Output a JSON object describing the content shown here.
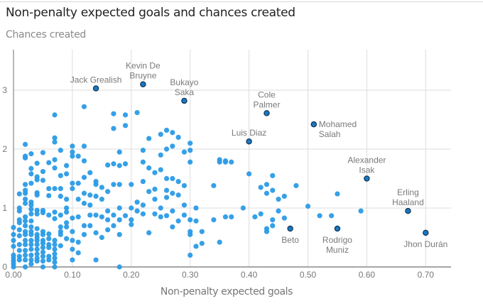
{
  "chart_data": {
    "type": "scatter",
    "title": "Non-penalty expected goals and chances created",
    "xlabel": "Non-penalty expected goals",
    "ylabel": "Chances created",
    "xlim": [
      0,
      0.75
    ],
    "ylim": [
      0,
      3.6
    ],
    "grid": true,
    "x_ticks": [
      "0.00",
      "0.10",
      "0.20",
      "0.30",
      "0.40",
      "0.50",
      "0.60",
      "0.70"
    ],
    "x_tick_values": [
      0,
      0.1,
      0.2,
      0.3,
      0.4,
      0.5,
      0.6,
      0.7
    ],
    "y_ticks": [
      "0",
      "1",
      "2",
      "3"
    ],
    "y_tick_values": [
      0,
      1,
      2,
      3
    ],
    "colors": {
      "point": "#2b9be6",
      "highlight": "#1a78c2",
      "highlight_stroke": "#123a5c",
      "grid": "#dddddd",
      "axis": "#888888"
    },
    "highlighted": [
      {
        "name": "Jack Grealish",
        "lines": [
          "Jack Grealish"
        ],
        "x": 0.14,
        "y": 3.03,
        "anchor": "top"
      },
      {
        "name": "Kevin De Bruyne",
        "lines": [
          "Kevin De",
          "Bruyne"
        ],
        "x": 0.22,
        "y": 3.1,
        "anchor": "top"
      },
      {
        "name": "Bukayo Saka",
        "lines": [
          "Bukayo",
          "Saka"
        ],
        "x": 0.29,
        "y": 2.82,
        "anchor": "top"
      },
      {
        "name": "Cole Palmer",
        "lines": [
          "Cole",
          "Palmer"
        ],
        "x": 0.43,
        "y": 2.61,
        "anchor": "top"
      },
      {
        "name": "Luis Diaz",
        "lines": [
          "Luis Diaz"
        ],
        "x": 0.4,
        "y": 2.13,
        "anchor": "top"
      },
      {
        "name": "Mohamed Salah",
        "lines": [
          "Mohamed",
          "Salah"
        ],
        "x": 0.51,
        "y": 2.42,
        "anchor": "right"
      },
      {
        "name": "Alexander Isak",
        "lines": [
          "Alexander",
          "Isak"
        ],
        "x": 0.6,
        "y": 1.5,
        "anchor": "top"
      },
      {
        "name": "Erling Haaland",
        "lines": [
          "Erling",
          "Haaland"
        ],
        "x": 0.67,
        "y": 0.95,
        "anchor": "top"
      },
      {
        "name": "Jhon Durán",
        "lines": [
          "Jhon Durán"
        ],
        "x": 0.7,
        "y": 0.58,
        "anchor": "bottom"
      },
      {
        "name": "Beto",
        "lines": [
          "Beto"
        ],
        "x": 0.47,
        "y": 0.65,
        "anchor": "bottom"
      },
      {
        "name": "Rodrigo Muniz",
        "lines": [
          "Rodrigo",
          "Muniz"
        ],
        "x": 0.55,
        "y": 0.65,
        "anchor": "bottom"
      }
    ],
    "points": [
      [
        0.0,
        0.67
      ],
      [
        0.0,
        0.55
      ],
      [
        0.0,
        0.45
      ],
      [
        0.0,
        0.35
      ],
      [
        0.0,
        0.2
      ],
      [
        0.0,
        0.15
      ],
      [
        0.0,
        0.1
      ],
      [
        0.0,
        0.05
      ],
      [
        0.0,
        0.0
      ],
      [
        0.01,
        1.24
      ],
      [
        0.01,
        1.0
      ],
      [
        0.01,
        0.95
      ],
      [
        0.01,
        0.8
      ],
      [
        0.01,
        0.75
      ],
      [
        0.01,
        0.63
      ],
      [
        0.01,
        0.53
      ],
      [
        0.01,
        0.38
      ],
      [
        0.01,
        0.28
      ],
      [
        0.01,
        0.18
      ],
      [
        0.01,
        0.12
      ],
      [
        0.02,
        2.08
      ],
      [
        0.02,
        1.88
      ],
      [
        0.02,
        1.85
      ],
      [
        0.02,
        1.4
      ],
      [
        0.02,
        1.3
      ],
      [
        0.02,
        1.25
      ],
      [
        0.02,
        1.15
      ],
      [
        0.02,
        1.08
      ],
      [
        0.02,
        0.85
      ],
      [
        0.02,
        0.78
      ],
      [
        0.02,
        0.7
      ],
      [
        0.02,
        0.6
      ],
      [
        0.02,
        0.55
      ],
      [
        0.02,
        0.45
      ],
      [
        0.02,
        0.38
      ],
      [
        0.02,
        0.28
      ],
      [
        0.02,
        0.2
      ],
      [
        0.02,
        0.12
      ],
      [
        0.02,
        0.0
      ],
      [
        0.03,
        1.92
      ],
      [
        0.03,
        1.67
      ],
      [
        0.03,
        1.58
      ],
      [
        0.03,
        1.42
      ],
      [
        0.03,
        1.1
      ],
      [
        0.03,
        1.05
      ],
      [
        0.03,
        0.98
      ],
      [
        0.03,
        0.9
      ],
      [
        0.03,
        0.78
      ],
      [
        0.03,
        0.68
      ],
      [
        0.03,
        0.6
      ],
      [
        0.03,
        0.55
      ],
      [
        0.03,
        0.45
      ],
      [
        0.03,
        0.38
      ],
      [
        0.03,
        0.3
      ],
      [
        0.03,
        0.2
      ],
      [
        0.03,
        0.12
      ],
      [
        0.03,
        0.05
      ],
      [
        0.04,
        1.76
      ],
      [
        0.04,
        1.53
      ],
      [
        0.04,
        1.48
      ],
      [
        0.04,
        1.26
      ],
      [
        0.04,
        1.22
      ],
      [
        0.04,
        0.96
      ],
      [
        0.04,
        0.9
      ],
      [
        0.04,
        0.65
      ],
      [
        0.04,
        0.55
      ],
      [
        0.04,
        0.5
      ],
      [
        0.04,
        0.45
      ],
      [
        0.04,
        0.38
      ],
      [
        0.04,
        0.3
      ],
      [
        0.04,
        0.22
      ],
      [
        0.04,
        0.15
      ],
      [
        0.04,
        0.1
      ],
      [
        0.05,
        1.94
      ],
      [
        0.05,
        1.62
      ],
      [
        0.05,
        1.47
      ],
      [
        0.05,
        0.96
      ],
      [
        0.05,
        0.92
      ],
      [
        0.05,
        0.6
      ],
      [
        0.05,
        0.55
      ],
      [
        0.05,
        0.45
      ],
      [
        0.05,
        0.4
      ],
      [
        0.05,
        0.33
      ],
      [
        0.05,
        0.25
      ],
      [
        0.05,
        0.18
      ],
      [
        0.05,
        0.1
      ],
      [
        0.05,
        0.0
      ],
      [
        0.06,
        1.77
      ],
      [
        0.06,
        1.33
      ],
      [
        0.06,
        1.21
      ],
      [
        0.06,
        0.88
      ],
      [
        0.06,
        0.56
      ],
      [
        0.06,
        0.48
      ],
      [
        0.06,
        0.38
      ],
      [
        0.06,
        0.33
      ],
      [
        0.06,
        0.18
      ],
      [
        0.06,
        0.12
      ],
      [
        0.07,
        2.58
      ],
      [
        0.07,
        2.19
      ],
      [
        0.07,
        2.12
      ],
      [
        0.07,
        1.82
      ],
      [
        0.07,
        1.68
      ],
      [
        0.07,
        1.33
      ],
      [
        0.07,
        0.93
      ],
      [
        0.07,
        0.82
      ],
      [
        0.07,
        0.45
      ],
      [
        0.07,
        0.38
      ],
      [
        0.07,
        0.3
      ],
      [
        0.07,
        0.22
      ],
      [
        0.07,
        0.15
      ],
      [
        0.07,
        0.08
      ],
      [
        0.07,
        0.0
      ],
      [
        0.08,
        1.98
      ],
      [
        0.08,
        1.55
      ],
      [
        0.08,
        1.33
      ],
      [
        0.08,
        1.2
      ],
      [
        0.08,
        0.88
      ],
      [
        0.08,
        0.68
      ],
      [
        0.08,
        0.6
      ],
      [
        0.08,
        0.55
      ],
      [
        0.08,
        0.36
      ],
      [
        0.09,
        1.72
      ],
      [
        0.09,
        1.58
      ],
      [
        0.09,
        1.15
      ],
      [
        0.09,
        1.0
      ],
      [
        0.09,
        0.93
      ],
      [
        0.09,
        0.75
      ],
      [
        0.09,
        0.68
      ],
      [
        0.09,
        0.48
      ],
      [
        0.1,
        2.05
      ],
      [
        0.1,
        1.95
      ],
      [
        0.1,
        1.88
      ],
      [
        0.1,
        1.42
      ],
      [
        0.1,
        1.33
      ],
      [
        0.1,
        0.83
      ],
      [
        0.1,
        0.6
      ],
      [
        0.1,
        0.45
      ],
      [
        0.1,
        0.3
      ],
      [
        0.1,
        0.12
      ],
      [
        0.11,
        1.88
      ],
      [
        0.11,
        1.42
      ],
      [
        0.11,
        1.15
      ],
      [
        0.11,
        0.85
      ],
      [
        0.11,
        0.42
      ],
      [
        0.11,
        0.24
      ],
      [
        0.12,
        2.72
      ],
      [
        0.12,
        2.05
      ],
      [
        0.12,
        1.8
      ],
      [
        0.12,
        1.52
      ],
      [
        0.12,
        1.25
      ],
      [
        0.12,
        1.08
      ],
      [
        0.12,
        0.7
      ],
      [
        0.12,
        0.55
      ],
      [
        0.13,
        1.6
      ],
      [
        0.13,
        1.22
      ],
      [
        0.13,
        1.05
      ],
      [
        0.13,
        0.88
      ],
      [
        0.13,
        0.7
      ],
      [
        0.14,
        1.45
      ],
      [
        0.14,
        1.4
      ],
      [
        0.14,
        1.2
      ],
      [
        0.14,
        0.88
      ],
      [
        0.14,
        0.58
      ],
      [
        0.14,
        0.12
      ],
      [
        0.15,
        1.35
      ],
      [
        0.15,
        1.15
      ],
      [
        0.15,
        0.85
      ],
      [
        0.15,
        0.5
      ],
      [
        0.16,
        1.73
      ],
      [
        0.16,
        1.28
      ],
      [
        0.16,
        0.95
      ],
      [
        0.16,
        0.8
      ],
      [
        0.16,
        0.63
      ],
      [
        0.17,
        2.6
      ],
      [
        0.17,
        2.35
      ],
      [
        0.17,
        1.75
      ],
      [
        0.17,
        1.4
      ],
      [
        0.17,
        0.88
      ],
      [
        0.17,
        0.7
      ],
      [
        0.18,
        1.95
      ],
      [
        0.18,
        1.72
      ],
      [
        0.18,
        1.4
      ],
      [
        0.18,
        1.0
      ],
      [
        0.18,
        0.8
      ],
      [
        0.18,
        0.55
      ],
      [
        0.18,
        0.0
      ],
      [
        0.19,
        2.58
      ],
      [
        0.19,
        2.4
      ],
      [
        0.19,
        1.75
      ],
      [
        0.19,
        0.87
      ],
      [
        0.2,
        1.4
      ],
      [
        0.2,
        1.0
      ],
      [
        0.2,
        0.8
      ],
      [
        0.2,
        0.72
      ],
      [
        0.21,
        2.62
      ],
      [
        0.21,
        1.1
      ],
      [
        0.21,
        0.95
      ],
      [
        0.22,
        1.98
      ],
      [
        0.22,
        1.78
      ],
      [
        0.22,
        1.45
      ],
      [
        0.22,
        1.05
      ],
      [
        0.22,
        0.9
      ],
      [
        0.23,
        2.18
      ],
      [
        0.23,
        1.68
      ],
      [
        0.23,
        1.28
      ],
      [
        0.23,
        0.58
      ],
      [
        0.24,
        1.6
      ],
      [
        0.24,
        1.32
      ],
      [
        0.24,
        1.15
      ],
      [
        0.24,
        0.9
      ],
      [
        0.25,
        2.25
      ],
      [
        0.25,
        1.9
      ],
      [
        0.25,
        1.65
      ],
      [
        0.25,
        1.0
      ],
      [
        0.25,
        0.85
      ],
      [
        0.26,
        2.32
      ],
      [
        0.26,
        2.0
      ],
      [
        0.26,
        1.5
      ],
      [
        0.26,
        1.3
      ],
      [
        0.26,
        1.18
      ],
      [
        0.26,
        0.87
      ],
      [
        0.27,
        2.28
      ],
      [
        0.27,
        2.05
      ],
      [
        0.27,
        1.5
      ],
      [
        0.27,
        1.25
      ],
      [
        0.27,
        0.95
      ],
      [
        0.27,
        0.68
      ],
      [
        0.28,
        2.2
      ],
      [
        0.28,
        1.45
      ],
      [
        0.28,
        1.22
      ],
      [
        0.28,
        0.78
      ],
      [
        0.29,
        1.95
      ],
      [
        0.29,
        1.38
      ],
      [
        0.29,
        1.05
      ],
      [
        0.29,
        0.88
      ],
      [
        0.3,
        2.1
      ],
      [
        0.3,
        1.98
      ],
      [
        0.3,
        1.78
      ],
      [
        0.3,
        0.8
      ],
      [
        0.3,
        0.6
      ],
      [
        0.3,
        0.55
      ],
      [
        0.3,
        0.2
      ],
      [
        0.31,
        1.0
      ],
      [
        0.31,
        0.78
      ],
      [
        0.31,
        0.35
      ],
      [
        0.32,
        0.6
      ],
      [
        0.32,
        0.4
      ],
      [
        0.34,
        1.38
      ],
      [
        0.34,
        0.8
      ],
      [
        0.35,
        1.82
      ],
      [
        0.35,
        1.78
      ],
      [
        0.35,
        0.42
      ],
      [
        0.36,
        1.8
      ],
      [
        0.36,
        1.78
      ],
      [
        0.36,
        0.85
      ],
      [
        0.37,
        1.78
      ],
      [
        0.37,
        0.85
      ],
      [
        0.39,
        1.0
      ],
      [
        0.4,
        1.58
      ],
      [
        0.41,
        0.85
      ],
      [
        0.42,
        1.35
      ],
      [
        0.42,
        0.9
      ],
      [
        0.43,
        1.4
      ],
      [
        0.43,
        1.25
      ],
      [
        0.43,
        0.6
      ],
      [
        0.43,
        0.65
      ],
      [
        0.44,
        1.55
      ],
      [
        0.44,
        1.3
      ],
      [
        0.44,
        0.8
      ],
      [
        0.44,
        0.7
      ],
      [
        0.45,
        1.15
      ],
      [
        0.45,
        0.95
      ],
      [
        0.46,
        1.2
      ],
      [
        0.46,
        0.83
      ],
      [
        0.48,
        1.38
      ],
      [
        0.5,
        1.03
      ],
      [
        0.52,
        0.87
      ],
      [
        0.54,
        0.87
      ],
      [
        0.55,
        1.24
      ],
      [
        0.59,
        0.95
      ]
    ]
  }
}
